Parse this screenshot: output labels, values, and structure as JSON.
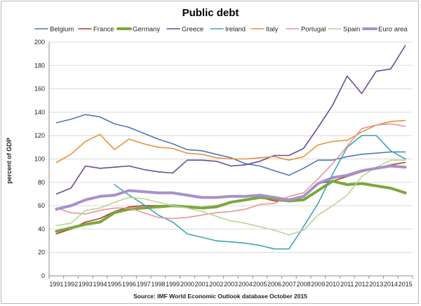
{
  "chart_data": {
    "type": "line",
    "title": "Public debt",
    "ylabel": "percent of GDP",
    "source": "Source: IMF World Economic Outlook database October 2015",
    "xlabel": "",
    "ylim": [
      0,
      200
    ],
    "yticks": [
      0,
      20,
      40,
      60,
      80,
      100,
      120,
      140,
      160,
      180,
      200
    ],
    "grid": "horizontal",
    "legend_position": "top",
    "x": [
      1991,
      1992,
      1993,
      1994,
      1995,
      1996,
      1997,
      1998,
      1999,
      2000,
      2001,
      2002,
      2003,
      2004,
      2005,
      2006,
      2007,
      2008,
      2009,
      2010,
      2011,
      2012,
      2013,
      2014,
      2015
    ],
    "series": [
      {
        "name": "Belgium",
        "color": "#4a7ab5",
        "width": 1.6,
        "values": [
          131,
          134,
          138,
          136,
          130,
          127,
          122,
          117,
          113,
          108,
          107,
          104,
          101,
          96,
          94,
          90,
          86,
          92,
          99,
          99,
          102,
          104,
          105,
          106,
          106
        ]
      },
      {
        "name": "France",
        "color": "#b03a2e",
        "width": 1.6,
        "values": [
          36,
          40,
          46,
          49,
          55,
          59,
          60,
          60,
          60,
          59,
          58,
          60,
          63,
          65,
          67,
          64,
          64,
          68,
          79,
          81,
          85,
          89,
          92,
          95,
          97
        ]
      },
      {
        "name": "Germany",
        "color": "#7aa83a",
        "width": 4,
        "values": [
          38,
          41,
          44,
          46,
          54,
          57,
          58,
          59,
          60,
          59,
          58,
          59,
          63,
          65,
          67,
          66,
          64,
          65,
          73,
          81,
          78,
          79,
          77,
          75,
          71
        ]
      },
      {
        "name": "Greece",
        "color": "#6a4c93",
        "width": 1.6,
        "values": [
          70,
          75,
          94,
          92,
          93,
          94,
          91,
          89,
          88,
          99,
          99,
          98,
          94,
          95,
          98,
          103,
          103,
          109,
          127,
          146,
          171,
          156,
          175,
          177,
          197
        ]
      },
      {
        "name": "Ireland",
        "color": "#3fa5b5",
        "width": 1.6,
        "values": [
          null,
          null,
          null,
          null,
          78,
          69,
          61,
          52,
          46,
          36,
          33,
          30,
          29,
          28,
          26,
          23,
          23,
          42,
          62,
          87,
          110,
          120,
          120,
          107,
          100
        ]
      },
      {
        "name": "Italy",
        "color": "#e8913a",
        "width": 1.6,
        "values": [
          97,
          104,
          115,
          121,
          108,
          117,
          113,
          110,
          109,
          105,
          104,
          101,
          100,
          100,
          101,
          102,
          99,
          102,
          112,
          115,
          116,
          123,
          129,
          132,
          133
        ]
      },
      {
        "name": "Portugal",
        "color": "#e89595",
        "width": 1.6,
        "values": [
          58,
          54,
          53,
          56,
          58,
          58,
          54,
          50,
          49,
          50,
          52,
          54,
          55,
          57,
          61,
          62,
          68,
          71,
          83,
          96,
          111,
          126,
          129,
          130,
          128
        ]
      },
      {
        "name": "Spain",
        "color": "#b9d494",
        "width": 1.6,
        "values": [
          43,
          45,
          56,
          58,
          63,
          67,
          66,
          63,
          60,
          58,
          55,
          51,
          47,
          45,
          42,
          39,
          35,
          39,
          52,
          60,
          69,
          85,
          93,
          99,
          99
        ]
      },
      {
        "name": "Euro area",
        "color": "#a791c9",
        "width": 4,
        "values": [
          57,
          60,
          65,
          68,
          69,
          73,
          72,
          71,
          71,
          69,
          67,
          67,
          68,
          68,
          69,
          67,
          65,
          68,
          79,
          84,
          86,
          90,
          92,
          94,
          93
        ]
      }
    ]
  }
}
